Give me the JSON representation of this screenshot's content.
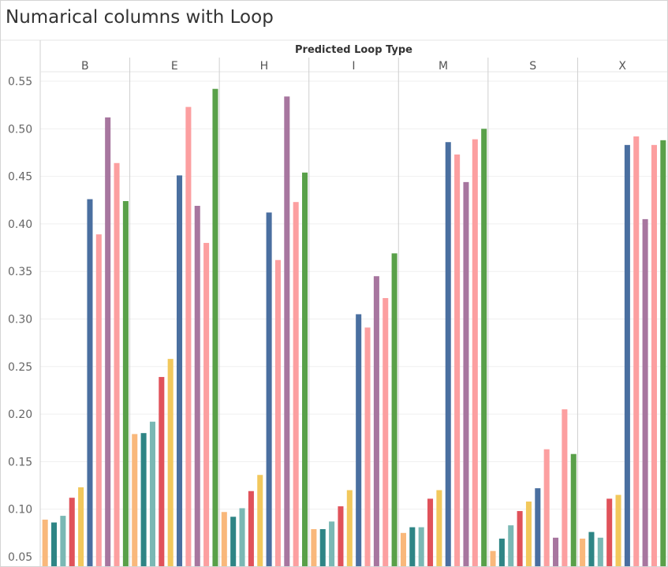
{
  "title": "Numarical columns with Loop",
  "chart_data": {
    "type": "bar",
    "column_header": "Predicted Loop Type",
    "categories": [
      "B",
      "E",
      "H",
      "I",
      "M",
      "S",
      "X"
    ],
    "ylim": [
      0.04,
      0.56
    ],
    "y_ticks": [
      "0.05",
      "0.10",
      "0.15",
      "0.20",
      "0.25",
      "0.30",
      "0.35",
      "0.40",
      "0.45",
      "0.50",
      "0.55"
    ],
    "y_tick_values": [
      0.05,
      0.1,
      0.15,
      0.2,
      0.25,
      0.3,
      0.35,
      0.4,
      0.45,
      0.5,
      0.55
    ],
    "grid": true,
    "bar_colors": [
      "#f9b87b",
      "#2e8585",
      "#7ab8b4",
      "#e0525a",
      "#f2c85c",
      "#4a6fa0",
      "#fc9fa0",
      "#a7769f",
      "#fc9fa0",
      "#59a049"
    ],
    "series_values": [
      [
        0.089,
        0.086,
        0.093,
        0.112,
        0.123,
        0.426,
        0.389,
        0.512,
        0.464,
        0.424
      ],
      [
        0.179,
        0.18,
        0.192,
        0.239,
        0.258,
        0.451,
        0.523,
        0.419,
        0.38,
        0.542
      ],
      [
        0.097,
        0.092,
        0.101,
        0.119,
        0.136,
        0.412,
        0.362,
        0.534,
        0.423,
        0.454
      ],
      [
        0.079,
        0.079,
        0.087,
        0.103,
        0.12,
        0.305,
        0.291,
        0.345,
        0.322,
        0.369
      ],
      [
        0.075,
        0.081,
        0.081,
        0.111,
        0.12,
        0.486,
        0.473,
        0.444,
        0.489,
        0.5
      ],
      [
        0.056,
        0.069,
        0.083,
        0.098,
        0.108,
        0.122,
        0.163,
        0.07,
        0.205,
        0.158
      ],
      [
        0.069,
        0.076,
        0.07,
        0.111,
        0.115,
        0.483,
        0.492,
        0.405,
        0.483,
        0.488
      ]
    ]
  }
}
